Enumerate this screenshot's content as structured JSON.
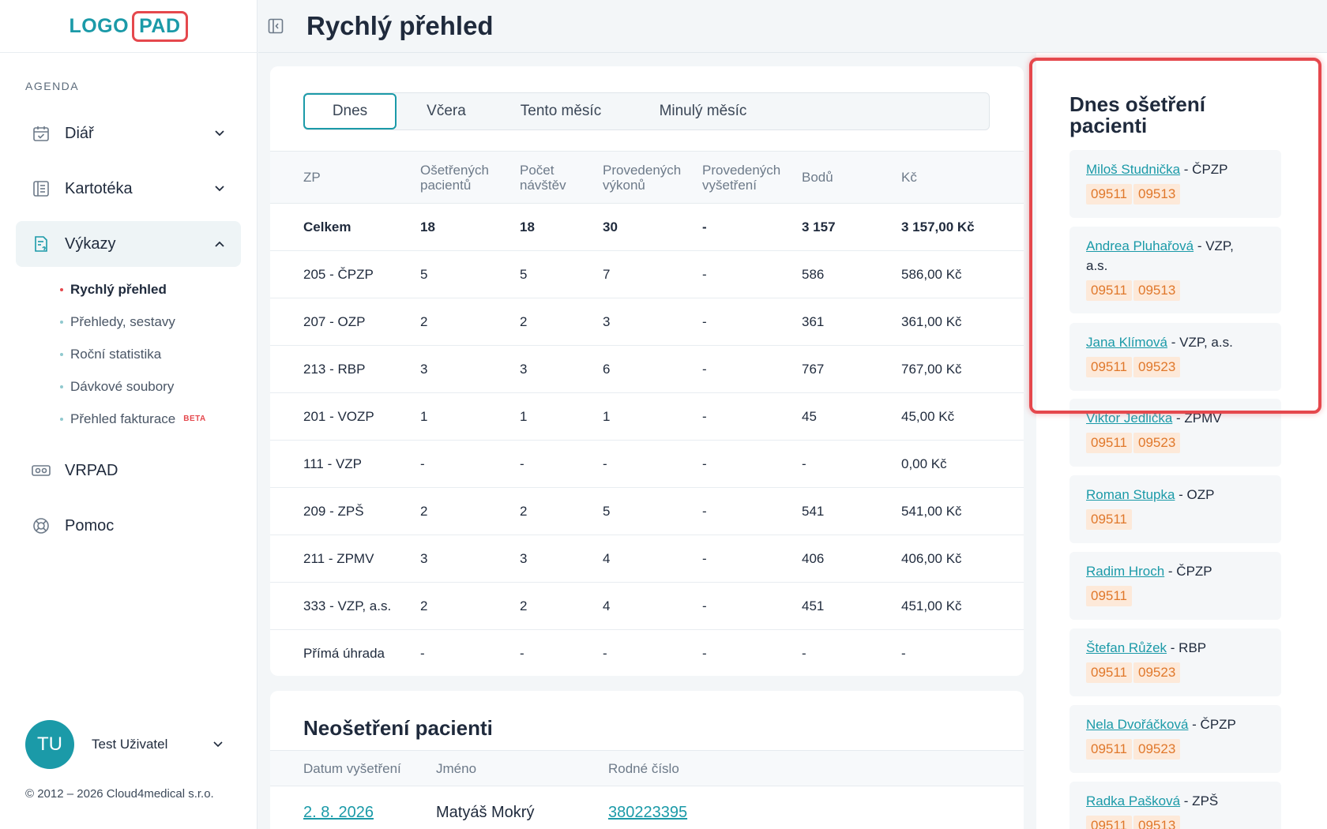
{
  "logo": {
    "part1": "LOGO",
    "part2": "PAD"
  },
  "sidebar": {
    "section": "AGENDA",
    "items": [
      {
        "label": "Diář",
        "icon": "calendar-icon"
      },
      {
        "label": "Kartotéka",
        "icon": "cards-icon"
      },
      {
        "label": "Výkazy",
        "icon": "report-icon"
      }
    ],
    "subitems": [
      {
        "label": "Rychlý přehled"
      },
      {
        "label": "Přehledy, sestavy"
      },
      {
        "label": "Roční statistika"
      },
      {
        "label": "Dávkové soubory"
      },
      {
        "label": "Přehled fakturace",
        "badge": "BETA"
      }
    ],
    "extra": [
      {
        "label": "VRPAD",
        "icon": "vr-icon"
      },
      {
        "label": "Pomoc",
        "icon": "lifebuoy-icon"
      }
    ],
    "user": {
      "initials": "TU",
      "name": "Test Uživatel"
    },
    "copyright": "© 2012 – 2026 Cloud4medical s.r.o."
  },
  "header": {
    "title": "Rychlý přehled"
  },
  "tabs": [
    "Dnes",
    "Včera",
    "Tento měsíc",
    "Minulý měsíc"
  ],
  "stats": {
    "columns": [
      "ZP",
      "Ošetřených pacientů",
      "Počet návštěv",
      "Provedených výkonů",
      "Provedených vyšetření",
      "Bodů",
      "Kč"
    ],
    "rows": [
      [
        "Celkem",
        "18",
        "18",
        "30",
        "-",
        "3 157",
        "3 157,00 Kč"
      ],
      [
        "205 - ČPZP",
        "5",
        "5",
        "7",
        "-",
        "586",
        "586,00 Kč"
      ],
      [
        "207 - OZP",
        "2",
        "2",
        "3",
        "-",
        "361",
        "361,00 Kč"
      ],
      [
        "213 - RBP",
        "3",
        "3",
        "6",
        "-",
        "767",
        "767,00 Kč"
      ],
      [
        "201 - VOZP",
        "1",
        "1",
        "1",
        "-",
        "45",
        "45,00 Kč"
      ],
      [
        "111 - VZP",
        "-",
        "-",
        "-",
        "-",
        "-",
        "0,00 Kč"
      ],
      [
        "209 - ZPŠ",
        "2",
        "2",
        "5",
        "-",
        "541",
        "541,00 Kč"
      ],
      [
        "211 - ZPMV",
        "3",
        "3",
        "4",
        "-",
        "406",
        "406,00 Kč"
      ],
      [
        "333 - VZP, a.s.",
        "2",
        "2",
        "4",
        "-",
        "451",
        "451,00 Kč"
      ],
      [
        "Přímá úhrada",
        "-",
        "-",
        "-",
        "-",
        "-",
        "-"
      ]
    ]
  },
  "untreated": {
    "title": "Neošetření pacienti",
    "columns": [
      "Datum vyšetření",
      "Jméno",
      "Rodné číslo"
    ],
    "row": {
      "date": "2. 8. 2026",
      "name": "Matyáš Mokrý",
      "rc": "380223395"
    }
  },
  "treated": {
    "title_line1": "Dnes ošetření",
    "title_line2": "pacienti",
    "patients": [
      {
        "name": "Miloš Studnička",
        "rest": " - ČPZP",
        "codes": [
          "09511",
          "09513"
        ]
      },
      {
        "name": "Andrea Pluhařová",
        "rest": " - VZP,",
        "rest2": "a.s.",
        "codes": [
          "09511",
          "09513"
        ]
      },
      {
        "name": "Jana Klímová",
        "rest": " - VZP, a.s.",
        "codes": [
          "09511",
          "09523"
        ]
      },
      {
        "name": "Viktor Jedlička",
        "rest": " - ZPMV",
        "codes": [
          "09511",
          "09523"
        ]
      },
      {
        "name": "Roman Stupka",
        "rest": " - OZP",
        "codes": [
          "09511"
        ]
      },
      {
        "name": "Radim Hroch",
        "rest": " - ČPZP",
        "codes": [
          "09511"
        ]
      },
      {
        "name": "Štefan Růžek",
        "rest": " - RBP",
        "codes": [
          "09511",
          "09523"
        ]
      },
      {
        "name": "Nela Dvořáčková",
        "rest": " - ČPZP",
        "codes": [
          "09511",
          "09523"
        ]
      },
      {
        "name": "Radka Pašková",
        "rest": " - ZPŠ",
        "codes": [
          "09511",
          "09513"
        ]
      }
    ]
  },
  "colors": {
    "accent": "#1b9aa8",
    "highlight": "#e5484d",
    "code_bg": "#fde9d9",
    "code_text": "#e0782b"
  }
}
